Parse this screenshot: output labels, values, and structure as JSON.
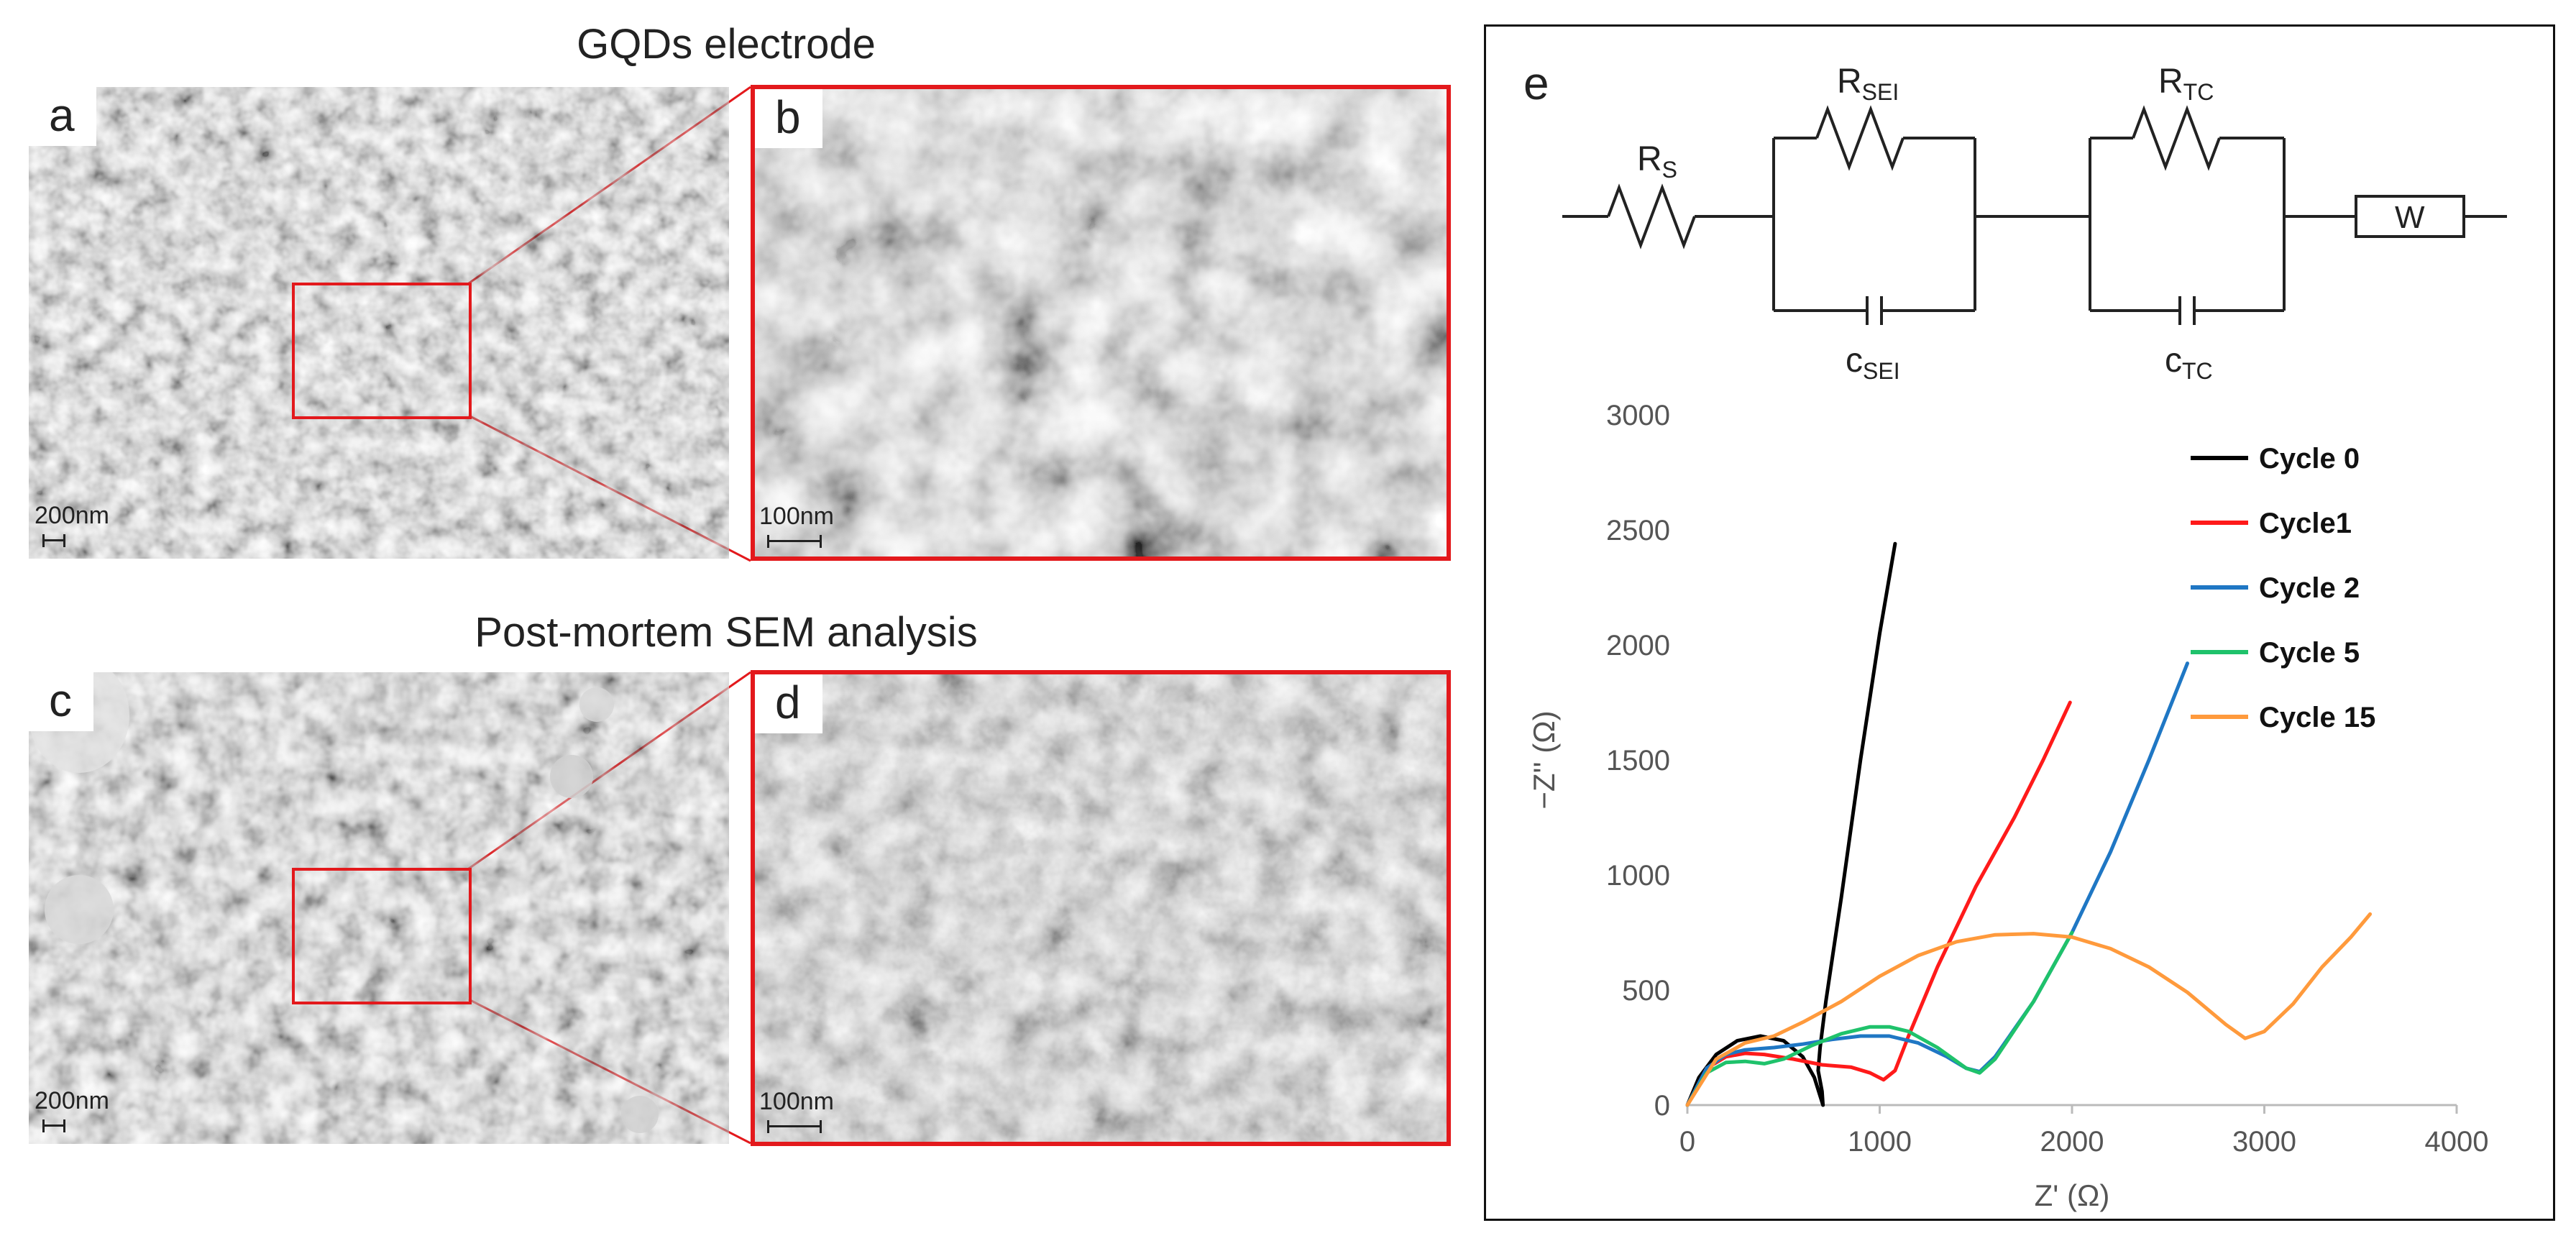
{
  "titles": {
    "top": "GQDs electrode",
    "bottom": "Post-mortem SEM analysis"
  },
  "panels": {
    "a": {
      "label": "a",
      "scale": "200nm"
    },
    "b": {
      "label": "b",
      "scale": "100nm"
    },
    "c": {
      "label": "c",
      "scale": "200nm"
    },
    "d": {
      "label": "d",
      "scale": "100nm"
    },
    "e": {
      "label": "e"
    }
  },
  "circuit": {
    "rs": "R",
    "rs_sub": "S",
    "rsei": "R",
    "rsei_sub": "SEI",
    "rtc": "R",
    "rtc_sub": "TC",
    "csei": "c",
    "csei_sub": "SEI",
    "ctc": "c",
    "ctc_sub": "TC",
    "w": "W"
  },
  "colors": {
    "highlight": "#e3191c"
  },
  "chart_data": {
    "type": "line",
    "xlabel": "Z' (Ω)",
    "ylabel": "−Z'' (Ω)",
    "xlim": [
      0,
      4000
    ],
    "ylim": [
      0,
      3000
    ],
    "xticks": [
      0,
      1000,
      2000,
      3000,
      4000
    ],
    "yticks": [
      0,
      500,
      1000,
      1500,
      2000,
      2500,
      3000
    ],
    "grid": false,
    "legend_position": "top-right",
    "series": [
      {
        "name": "Cycle 0",
        "color": "#000000",
        "x": [
          0,
          60,
          150,
          260,
          380,
          500,
          600,
          660,
          690,
          705,
          700,
          680,
          690,
          720,
          800,
          900,
          1000,
          1080
        ],
        "y": [
          0,
          120,
          220,
          280,
          300,
          280,
          210,
          120,
          40,
          0,
          60,
          150,
          250,
          450,
          900,
          1500,
          2050,
          2440
        ]
      },
      {
        "name": "Cycle1",
        "color": "#ff1a1a",
        "x": [
          0,
          100,
          200,
          300,
          400,
          550,
          700,
          850,
          950,
          1020,
          1080,
          1150,
          1300,
          1500,
          1700,
          1850,
          1990
        ],
        "y": [
          0,
          160,
          210,
          225,
          220,
          200,
          175,
          165,
          140,
          110,
          150,
          300,
          600,
          950,
          1250,
          1500,
          1750
        ]
      },
      {
        "name": "Cycle 2",
        "color": "#1f77c4",
        "x": [
          0,
          100,
          200,
          300,
          450,
          600,
          750,
          900,
          1050,
          1200,
          1350,
          1450,
          1520,
          1600,
          1800,
          2000,
          2200,
          2400,
          2600
        ],
        "y": [
          0,
          160,
          220,
          240,
          250,
          265,
          285,
          300,
          300,
          270,
          210,
          160,
          145,
          210,
          450,
          750,
          1100,
          1500,
          1920
        ]
      },
      {
        "name": "Cycle 5",
        "color": "#1fc26b",
        "x": [
          0,
          100,
          200,
          300,
          400,
          500,
          650,
          800,
          950,
          1050,
          1150,
          1300,
          1450,
          1520,
          1600,
          1800,
          2000
        ],
        "y": [
          0,
          140,
          185,
          190,
          180,
          200,
          260,
          310,
          340,
          340,
          320,
          250,
          160,
          140,
          200,
          450,
          750
        ]
      },
      {
        "name": "Cycle 15",
        "color": "#ff9a3c",
        "x": [
          0,
          150,
          300,
          450,
          600,
          800,
          1000,
          1200,
          1400,
          1600,
          1800,
          2000,
          2200,
          2400,
          2600,
          2800,
          2900,
          3000,
          3150,
          3300,
          3450,
          3550
        ],
        "y": [
          0,
          200,
          270,
          300,
          360,
          450,
          560,
          650,
          710,
          740,
          745,
          730,
          680,
          600,
          490,
          350,
          290,
          320,
          440,
          600,
          730,
          830
        ]
      }
    ]
  }
}
